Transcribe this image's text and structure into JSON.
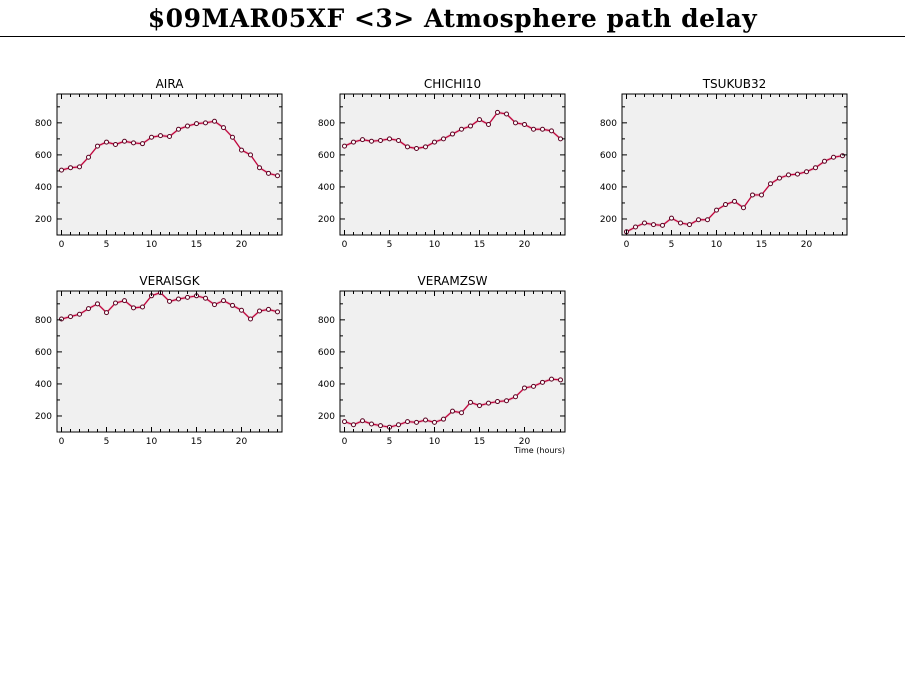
{
  "page": {
    "title": "$09MAR05XF <3>  Atmosphere path delay"
  },
  "colors": {
    "series_line": "#c0003a",
    "marker_fill": "#ffffff",
    "marker_edge": "#5a0020",
    "error_band": "#e6c9d0",
    "panel_bg": "#f0f0f0",
    "axis": "#000000"
  },
  "chart_data": [
    {
      "type": "line",
      "title": "AIRA",
      "xlabel": "",
      "ylabel": "",
      "xlim": [
        -0.5,
        24.5
      ],
      "ylim": [
        100,
        980
      ],
      "xticks": [
        0,
        5,
        10,
        15,
        20
      ],
      "yticks": [
        200,
        400,
        600,
        800
      ],
      "grid": false,
      "x": [
        0,
        1,
        2,
        3,
        4,
        5,
        6,
        7,
        8,
        9,
        10,
        11,
        12,
        13,
        14,
        15,
        16,
        17,
        18,
        19,
        20,
        21,
        22,
        23,
        24
      ],
      "values": [
        505,
        520,
        525,
        585,
        655,
        680,
        665,
        685,
        675,
        670,
        710,
        720,
        715,
        760,
        780,
        795,
        800,
        810,
        770,
        710,
        630,
        600,
        520,
        485,
        470
      ]
    },
    {
      "type": "line",
      "title": "CHICHI10",
      "xlabel": "",
      "ylabel": "",
      "xlim": [
        -0.5,
        24.5
      ],
      "ylim": [
        100,
        980
      ],
      "xticks": [
        0,
        5,
        10,
        15,
        20
      ],
      "yticks": [
        200,
        400,
        600,
        800
      ],
      "grid": false,
      "x": [
        0,
        1,
        2,
        3,
        4,
        5,
        6,
        7,
        8,
        9,
        10,
        11,
        12,
        13,
        14,
        15,
        16,
        17,
        18,
        19,
        20,
        21,
        22,
        23,
        24
      ],
      "values": [
        655,
        680,
        695,
        685,
        690,
        700,
        690,
        650,
        640,
        650,
        680,
        700,
        730,
        760,
        780,
        820,
        790,
        865,
        855,
        800,
        790,
        760,
        760,
        750,
        700
      ]
    },
    {
      "type": "line",
      "title": "TSUKUB32",
      "xlabel": "",
      "ylabel": "",
      "xlim": [
        -0.5,
        24.5
      ],
      "ylim": [
        100,
        980
      ],
      "xticks": [
        0,
        5,
        10,
        15,
        20
      ],
      "yticks": [
        200,
        400,
        600,
        800
      ],
      "grid": false,
      "x": [
        0,
        1,
        2,
        3,
        4,
        5,
        6,
        7,
        8,
        9,
        10,
        11,
        12,
        13,
        14,
        15,
        16,
        17,
        18,
        19,
        20,
        21,
        22,
        23,
        24
      ],
      "values": [
        120,
        150,
        175,
        165,
        160,
        205,
        175,
        165,
        195,
        195,
        255,
        290,
        310,
        270,
        350,
        350,
        420,
        455,
        475,
        480,
        495,
        520,
        560,
        585,
        595
      ]
    },
    {
      "type": "line",
      "title": "VERAISGK",
      "xlabel": "",
      "ylabel": "",
      "xlim": [
        -0.5,
        24.5
      ],
      "ylim": [
        100,
        980
      ],
      "xticks": [
        0,
        5,
        10,
        15,
        20
      ],
      "yticks": [
        200,
        400,
        600,
        800
      ],
      "grid": false,
      "x": [
        0,
        1,
        2,
        3,
        4,
        5,
        6,
        7,
        8,
        9,
        10,
        11,
        12,
        13,
        14,
        15,
        16,
        17,
        18,
        19,
        20,
        21,
        22,
        23,
        24
      ],
      "values": [
        805,
        820,
        835,
        870,
        900,
        845,
        905,
        920,
        875,
        880,
        950,
        970,
        915,
        930,
        940,
        950,
        935,
        895,
        920,
        890,
        860,
        805,
        855,
        865,
        850
      ]
    },
    {
      "type": "line",
      "title": "VERAMZSW",
      "xlabel": "Time (hours)",
      "ylabel": "",
      "xlim": [
        -0.5,
        24.5
      ],
      "ylim": [
        100,
        980
      ],
      "xticks": [
        0,
        5,
        10,
        15,
        20
      ],
      "yticks": [
        200,
        400,
        600,
        800
      ],
      "grid": false,
      "x": [
        0,
        1,
        2,
        3,
        4,
        5,
        6,
        7,
        8,
        9,
        10,
        11,
        12,
        13,
        14,
        15,
        16,
        17,
        18,
        19,
        20,
        21,
        22,
        23,
        24
      ],
      "values": [
        165,
        145,
        170,
        150,
        140,
        130,
        145,
        165,
        160,
        175,
        160,
        180,
        230,
        220,
        285,
        265,
        280,
        290,
        295,
        320,
        375,
        385,
        410,
        430,
        425
      ]
    }
  ]
}
